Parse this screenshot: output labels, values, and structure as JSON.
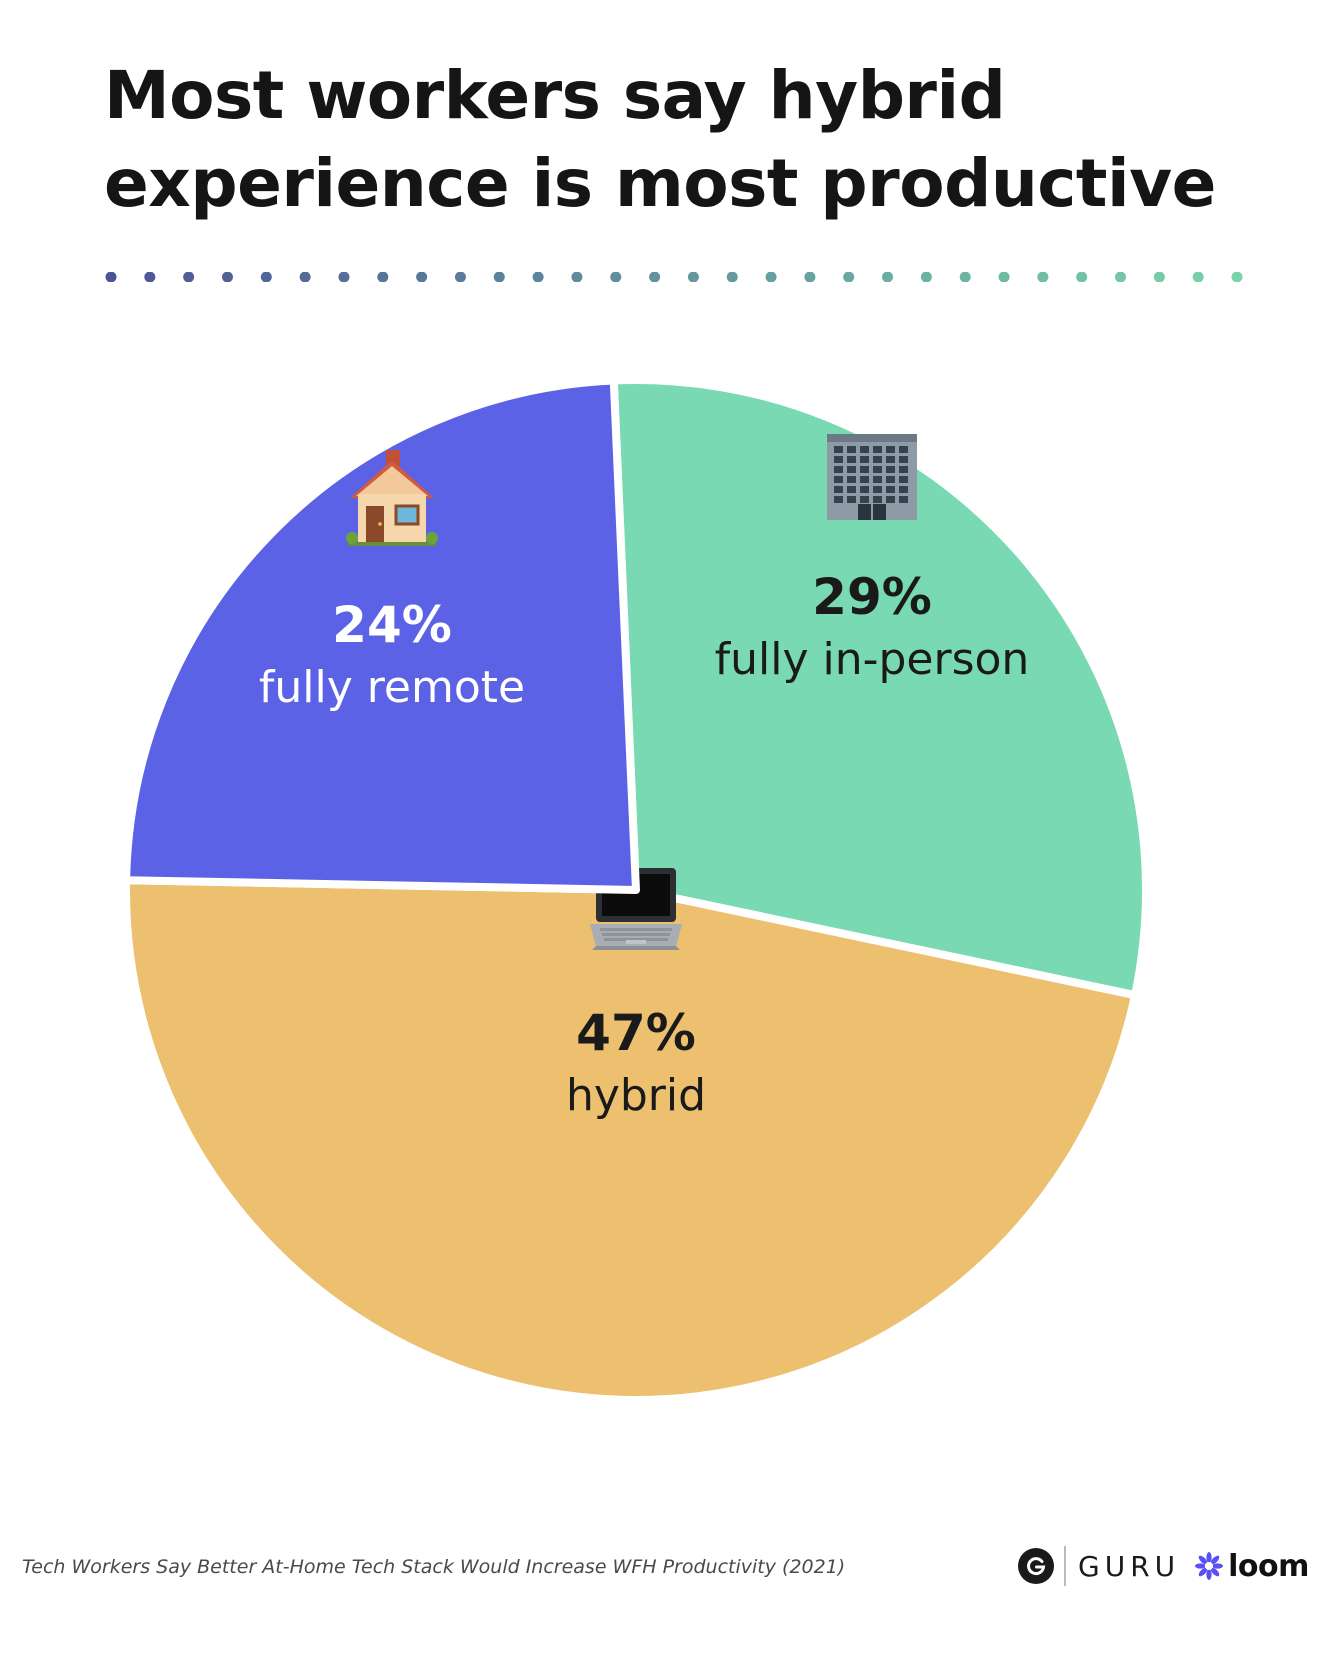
{
  "title": {
    "line1": "Most workers say hybrid",
    "line2": "experience is most productive"
  },
  "colors": {
    "remote": "#5B62E5",
    "inperson": "#78D9B3",
    "hybrid": "#EDC070",
    "dots_start": "#4C5594",
    "dots_end": "#78D4A8"
  },
  "chart_data": {
    "type": "pie",
    "slices": [
      {
        "value": 29,
        "pct_label": "29%",
        "label": "fully in-person",
        "icon": "office-building-icon",
        "color": "#78D9B3",
        "text_color": "#1a1a1a"
      },
      {
        "value": 47,
        "pct_label": "47%",
        "label": "hybrid",
        "icon": "laptop-icon",
        "color": "#EDC070",
        "text_color": "#1a1a1a"
      },
      {
        "value": 24,
        "pct_label": "24%",
        "label": "fully remote",
        "icon": "house-icon",
        "color": "#5B62E5",
        "text_color": "#ffffff"
      }
    ]
  },
  "footer": {
    "source": "Tech Workers Say Better At-Home Tech Stack Would Increase WFH Productivity (2021)"
  },
  "logos": {
    "guru": "GURU",
    "loom": "loom"
  }
}
